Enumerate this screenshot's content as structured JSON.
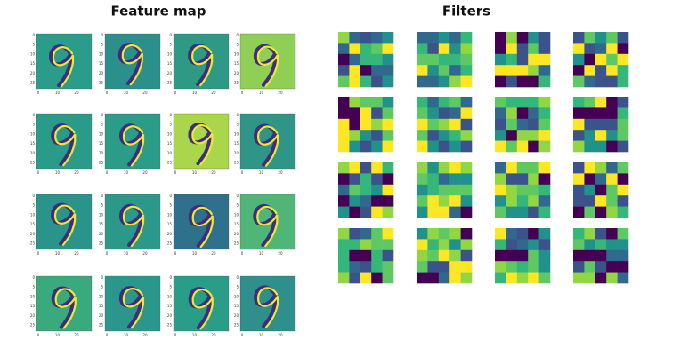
{
  "feature_map": {
    "title": "Feature map",
    "y_ticks": [
      "0",
      "5",
      "10",
      "15",
      "20",
      "25"
    ],
    "x_ticks": [
      "0",
      "10",
      "20"
    ]
  },
  "filters": {
    "title": "Filters"
  }
}
